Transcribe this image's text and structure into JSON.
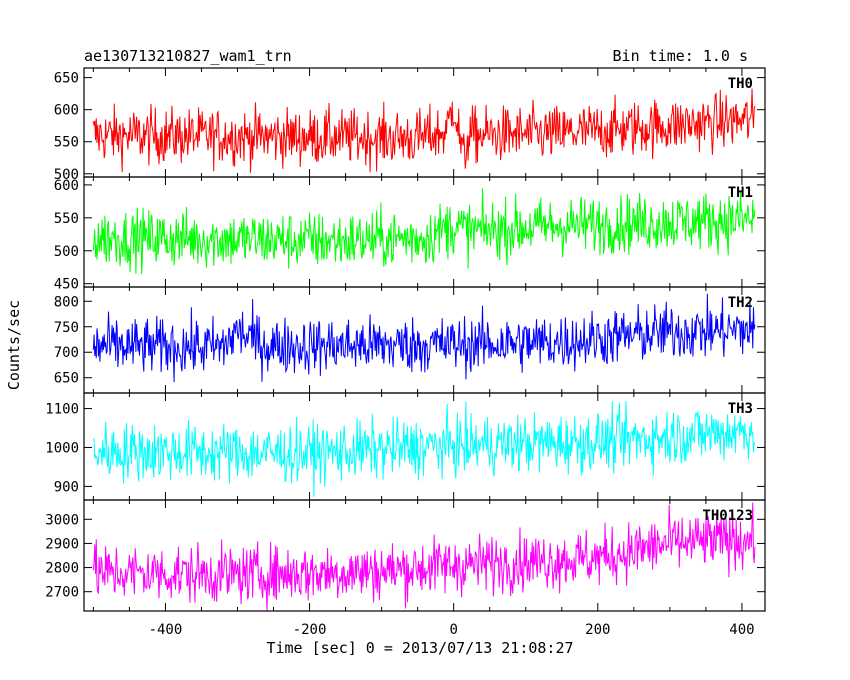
{
  "header": {
    "left": "ae130713210827_wam1_trn",
    "right": "Bin time: 1.0 s"
  },
  "y_axis_label": "Counts/sec",
  "x_axis_label": "Time [sec] 0 = 2013/07/13 21:08:27",
  "chart_data": {
    "type": "line",
    "title": "ae130713210827_wam1_trn",
    "subtitle": "Bin time: 1.0 s",
    "xlabel": "Time [sec] 0 = 2013/07/13 21:08:27",
    "ylabel": "Counts/sec",
    "xlim": [
      -513,
      432
    ],
    "x_ticks": [
      -400,
      -200,
      0,
      200,
      400
    ],
    "x_range": [
      -500,
      418
    ],
    "bin_s": 1.0,
    "grid": false,
    "panels": [
      {
        "name": "TH0",
        "color": "#ff0000",
        "ylim": [
          495,
          665
        ],
        "y_ticks": [
          500,
          550,
          600,
          650
        ],
        "profile": [
          [
            -500,
            560
          ],
          [
            -50,
            556
          ],
          [
            -10,
            565
          ],
          [
            0,
            612
          ],
          [
            14,
            520
          ],
          [
            20,
            560
          ],
          [
            150,
            563
          ],
          [
            418,
            585
          ]
        ],
        "noise": 22
      },
      {
        "name": "TH1",
        "color": "#00ff00",
        "ylim": [
          445,
          612
        ],
        "y_ticks": [
          450,
          500,
          550,
          600
        ],
        "profile": [
          [
            -500,
            520
          ],
          [
            -150,
            515
          ],
          [
            -40,
            520
          ],
          [
            0,
            538
          ],
          [
            20,
            530
          ],
          [
            150,
            538
          ],
          [
            418,
            548
          ]
        ],
        "noise": 22
      },
      {
        "name": "TH2",
        "color": "#0000ff",
        "ylim": [
          620,
          828
        ],
        "y_ticks": [
          650,
          700,
          750,
          800
        ],
        "profile": [
          [
            -500,
            712
          ],
          [
            -320,
            710
          ],
          [
            -300,
            742
          ],
          [
            -260,
            712
          ],
          [
            0,
            715
          ],
          [
            150,
            720
          ],
          [
            300,
            740
          ],
          [
            418,
            745
          ]
        ],
        "noise": 28
      },
      {
        "name": "TH3",
        "color": "#00ffff",
        "ylim": [
          865,
          1140
        ],
        "y_ticks": [
          900,
          1000,
          1100
        ],
        "profile": [
          [
            -500,
            990
          ],
          [
            -200,
            985
          ],
          [
            0,
            1005
          ],
          [
            200,
            1015
          ],
          [
            418,
            1045
          ]
        ],
        "noise": 38
      },
      {
        "name": "TH0123",
        "color": "#ff00ff",
        "ylim": [
          2620,
          3080
        ],
        "y_ticks": [
          2700,
          2800,
          2900,
          3000
        ],
        "profile": [
          [
            -500,
            2780
          ],
          [
            -300,
            2770
          ],
          [
            -100,
            2785
          ],
          [
            0,
            2810
          ],
          [
            200,
            2840
          ],
          [
            300,
            2900
          ],
          [
            418,
            2920
          ]
        ],
        "noise": 60
      }
    ]
  }
}
